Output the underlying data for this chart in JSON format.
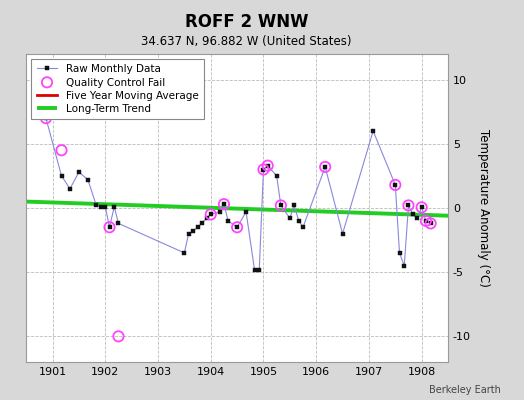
{
  "title": "ROFF 2 WNW",
  "subtitle": "34.637 N, 96.882 W (United States)",
  "credit": "Berkeley Earth",
  "ylabel": "Temperature Anomaly (°C)",
  "xlim": [
    1900.5,
    1908.5
  ],
  "ylim": [
    -12,
    12
  ],
  "yticks": [
    -10,
    -5,
    0,
    5,
    10
  ],
  "xticks": [
    1901,
    1902,
    1903,
    1904,
    1905,
    1906,
    1907,
    1908
  ],
  "raw_x": [
    1900.875,
    1901.17,
    1901.33,
    1901.5,
    1901.67,
    1901.83,
    1901.92,
    1902.0,
    1902.08,
    1902.17,
    1902.25,
    1903.5,
    1903.58,
    1903.67,
    1903.75,
    1903.83,
    1903.92,
    1904.0,
    1904.17,
    1904.25,
    1904.33,
    1904.5,
    1904.67,
    1904.83,
    1904.92,
    1905.0,
    1905.08,
    1905.25,
    1905.33,
    1905.5,
    1905.58,
    1905.67,
    1905.75,
    1906.17,
    1906.5,
    1907.08,
    1907.5,
    1907.58,
    1907.67,
    1907.75,
    1907.83,
    1907.92,
    1908.0,
    1908.08,
    1908.17
  ],
  "raw_y": [
    7.0,
    2.5,
    1.5,
    2.8,
    2.2,
    0.2,
    0.1,
    0.1,
    -1.5,
    0.1,
    -1.2,
    -3.5,
    -2.0,
    -1.8,
    -1.5,
    -1.2,
    -0.8,
    -0.5,
    -0.3,
    0.3,
    -1.0,
    -1.5,
    -0.3,
    -4.8,
    -4.8,
    3.0,
    3.3,
    2.5,
    0.2,
    -0.8,
    0.2,
    -1.0,
    -1.5,
    3.2,
    -2.0,
    6.0,
    1.8,
    -3.5,
    -4.5,
    0.2,
    -0.5,
    -0.8,
    0.05,
    -1.0,
    -1.2
  ],
  "qc_fail_x": [
    1900.875,
    1901.17,
    1902.08,
    1902.25,
    1904.0,
    1904.25,
    1904.5,
    1905.0,
    1905.08,
    1905.33,
    1906.17,
    1907.5,
    1907.75,
    1908.0,
    1908.08,
    1908.17
  ],
  "qc_fail_y": [
    7.0,
    4.5,
    -1.5,
    -10.0,
    -0.5,
    0.3,
    -1.5,
    3.0,
    3.3,
    0.2,
    3.2,
    1.8,
    0.2,
    0.05,
    -1.0,
    -1.2
  ],
  "trend_x": [
    1900.5,
    1908.5
  ],
  "trend_y": [
    0.5,
    -0.6
  ],
  "bg_color": "#d8d8d8",
  "plot_bg": "#ffffff",
  "raw_line_color": "#8888dd",
  "raw_marker_color": "#111111",
  "qc_color": "#ff44ff",
  "trend_color": "#22cc22",
  "ma_color": "#dd0000",
  "grid_color": "#bbbbbb"
}
